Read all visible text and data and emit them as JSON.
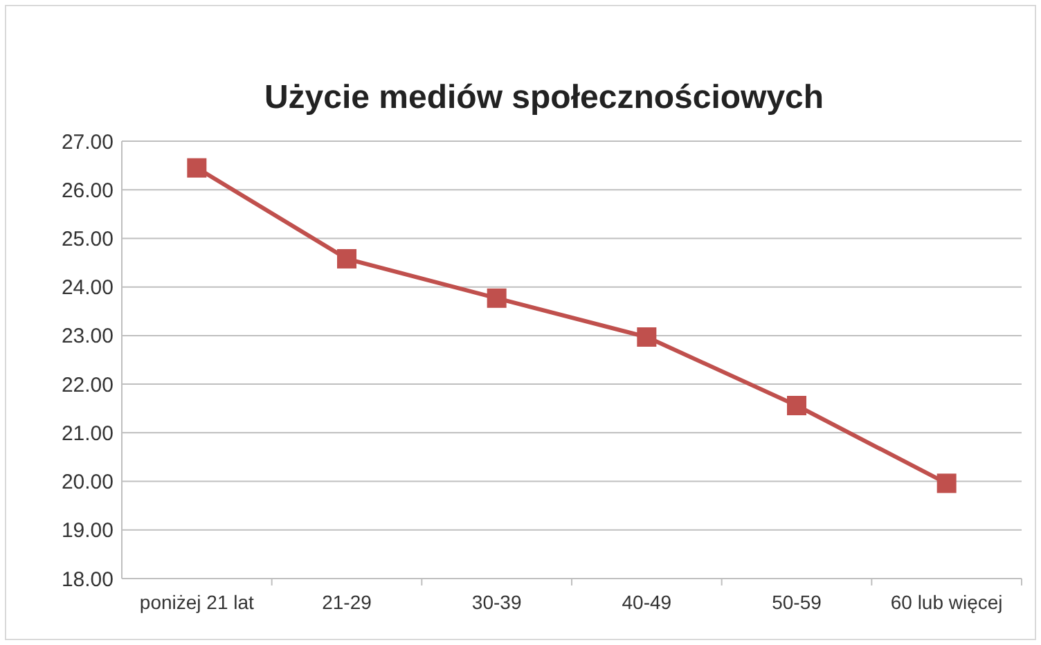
{
  "chart_data": {
    "type": "line",
    "title": "Użycie mediów społecznościowych",
    "categories": [
      "poniżej 21 lat",
      "21-29",
      "30-39",
      "40-49",
      "50-59",
      "60 lub więcej"
    ],
    "series": [
      {
        "color": "#c0504d",
        "values": [
          26.45,
          24.58,
          23.77,
          22.97,
          21.56,
          19.96
        ]
      }
    ],
    "ylim": [
      18,
      27
    ],
    "yticks": [
      {
        "value": 18,
        "label": "18.00"
      },
      {
        "value": 19,
        "label": "19.00"
      },
      {
        "value": 20,
        "label": "20.00"
      },
      {
        "value": 21,
        "label": "21.00"
      },
      {
        "value": 22,
        "label": "22.00"
      },
      {
        "value": 23,
        "label": "23.00"
      },
      {
        "value": 24,
        "label": "24.00"
      },
      {
        "value": 25,
        "label": "25.00"
      },
      {
        "value": 26,
        "label": "26.00"
      },
      {
        "value": 27,
        "label": "27.00"
      }
    ],
    "grid": "y",
    "marker": "square",
    "line_style": "solid"
  }
}
